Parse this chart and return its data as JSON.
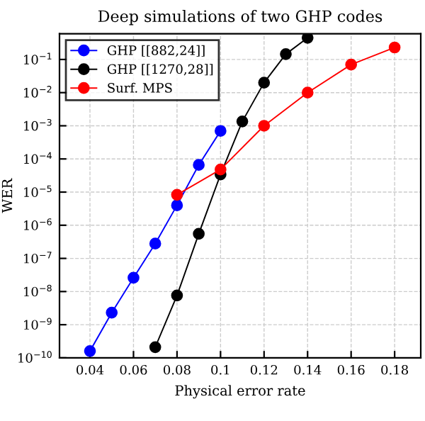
{
  "chart_data": {
    "type": "line",
    "title": "Deep simulations of two GHP codes",
    "xlabel": "Physical error rate",
    "ylabel": "WER",
    "log": "y",
    "grid": true,
    "legend": "top left",
    "marker": "circle",
    "xlim": [
      0.026,
      0.192
    ],
    "xticks": [
      0.04,
      0.06,
      0.08,
      0.1,
      0.12,
      0.14,
      0.16,
      0.18
    ],
    "ylim": [
      1e-10,
      0.6
    ],
    "yticks": [
      {
        "value": 1e-10,
        "label": "10$^{−10}$"
      },
      {
        "value": 1e-09,
        "label": "10$^{−9}$"
      },
      {
        "value": 1e-08,
        "label": "10$^{−8}$"
      },
      {
        "value": 1e-07,
        "label": "10$^{−7}$"
      },
      {
        "value": 1e-06,
        "label": "10$^{−6}$"
      },
      {
        "value": 1e-05,
        "label": "10$^{−5}$"
      },
      {
        "value": 0.0001,
        "label": "10$^{−4}$"
      },
      {
        "value": 0.001,
        "label": "10$^{−3}$"
      },
      {
        "value": 0.01,
        "label": "10$^{−2}$"
      },
      {
        "value": 0.1,
        "label": "10$^{−1}$"
      }
    ],
    "series": [
      {
        "name": "GHP [[882,24]]",
        "color": "#0000ff",
        "x": [
          0.04,
          0.05,
          0.06,
          0.07,
          0.08,
          0.09,
          0.1
        ],
        "values": [
          1.6e-10,
          2.3e-09,
          2.6e-08,
          2.8e-07,
          4e-06,
          6.6e-05,
          0.0007
        ]
      },
      {
        "name": "GHP [[1270,28]]",
        "color": "#000000",
        "x": [
          0.07,
          0.08,
          0.09,
          0.1,
          0.11,
          0.12,
          0.13,
          0.14
        ],
        "values": [
          2.1e-10,
          7.6e-09,
          5.5e-07,
          3.4e-05,
          0.00135,
          0.02,
          0.145,
          0.45
        ]
      },
      {
        "name": "Surf. MPS",
        "color": "#ff0000",
        "x": [
          0.08,
          0.1,
          0.12,
          0.14,
          0.16,
          0.18
        ],
        "values": [
          8.3e-06,
          4.8e-05,
          0.001,
          0.01,
          0.07,
          0.23
        ]
      }
    ]
  }
}
